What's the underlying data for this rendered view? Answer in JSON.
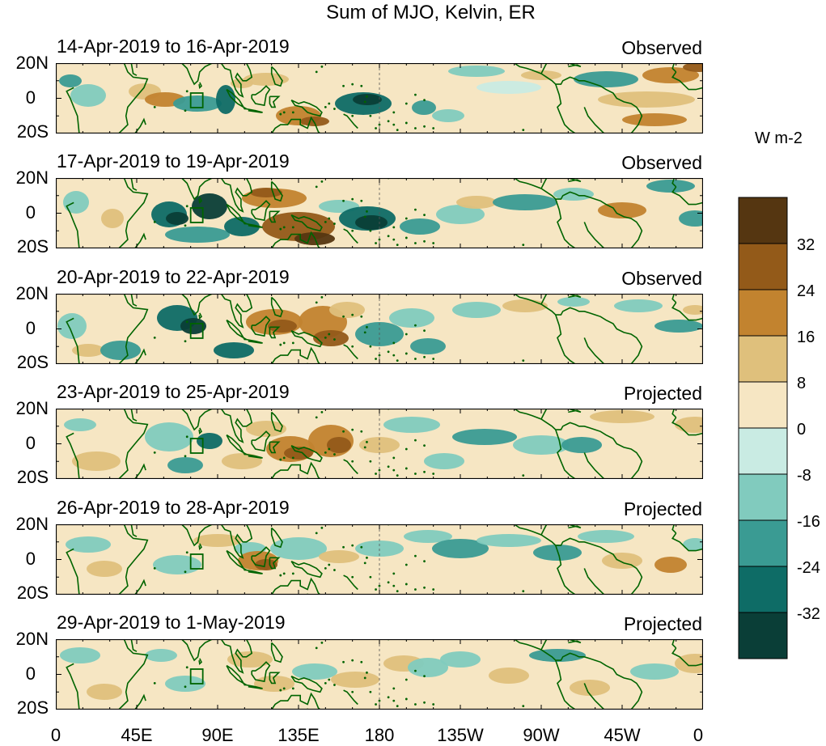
{
  "title": "Sum of MJO, Kelvin, ER",
  "panels": [
    {
      "date_range": "14-Apr-2019 to 16-Apr-2019",
      "status": "Observed"
    },
    {
      "date_range": "17-Apr-2019 to 19-Apr-2019",
      "status": "Observed"
    },
    {
      "date_range": "20-Apr-2019 to 22-Apr-2019",
      "status": "Observed"
    },
    {
      "date_range": "23-Apr-2019 to 25-Apr-2019",
      "status": "Projected"
    },
    {
      "date_range": "26-Apr-2019 to 28-Apr-2019",
      "status": "Projected"
    },
    {
      "date_range": "29-Apr-2019 to 1-May-2019",
      "status": "Projected"
    }
  ],
  "lat_labels": {
    "north": "20N",
    "equator": "0",
    "south": "20S"
  },
  "lon_labels": [
    "0",
    "45E",
    "90E",
    "135E",
    "180",
    "135W",
    "90W",
    "45W",
    "0"
  ],
  "colorbar": {
    "units": "W m-2",
    "tick_labels": [
      "32",
      "24",
      "16",
      "8",
      "0",
      "-8",
      "-16",
      "-24",
      "-32"
    ],
    "colors": [
      "#553611",
      "#935a19",
      "#c2832f",
      "#dfc07c",
      "#f6e6c3",
      "#c9ebe3",
      "#81cbbe",
      "#3a9b93",
      "#0e6c66",
      "#0a3e37"
    ]
  },
  "map_colors": {
    "land_outline": "#006400",
    "ocean_neutral": "#f6e6c3",
    "dateline": "#555555"
  }
}
